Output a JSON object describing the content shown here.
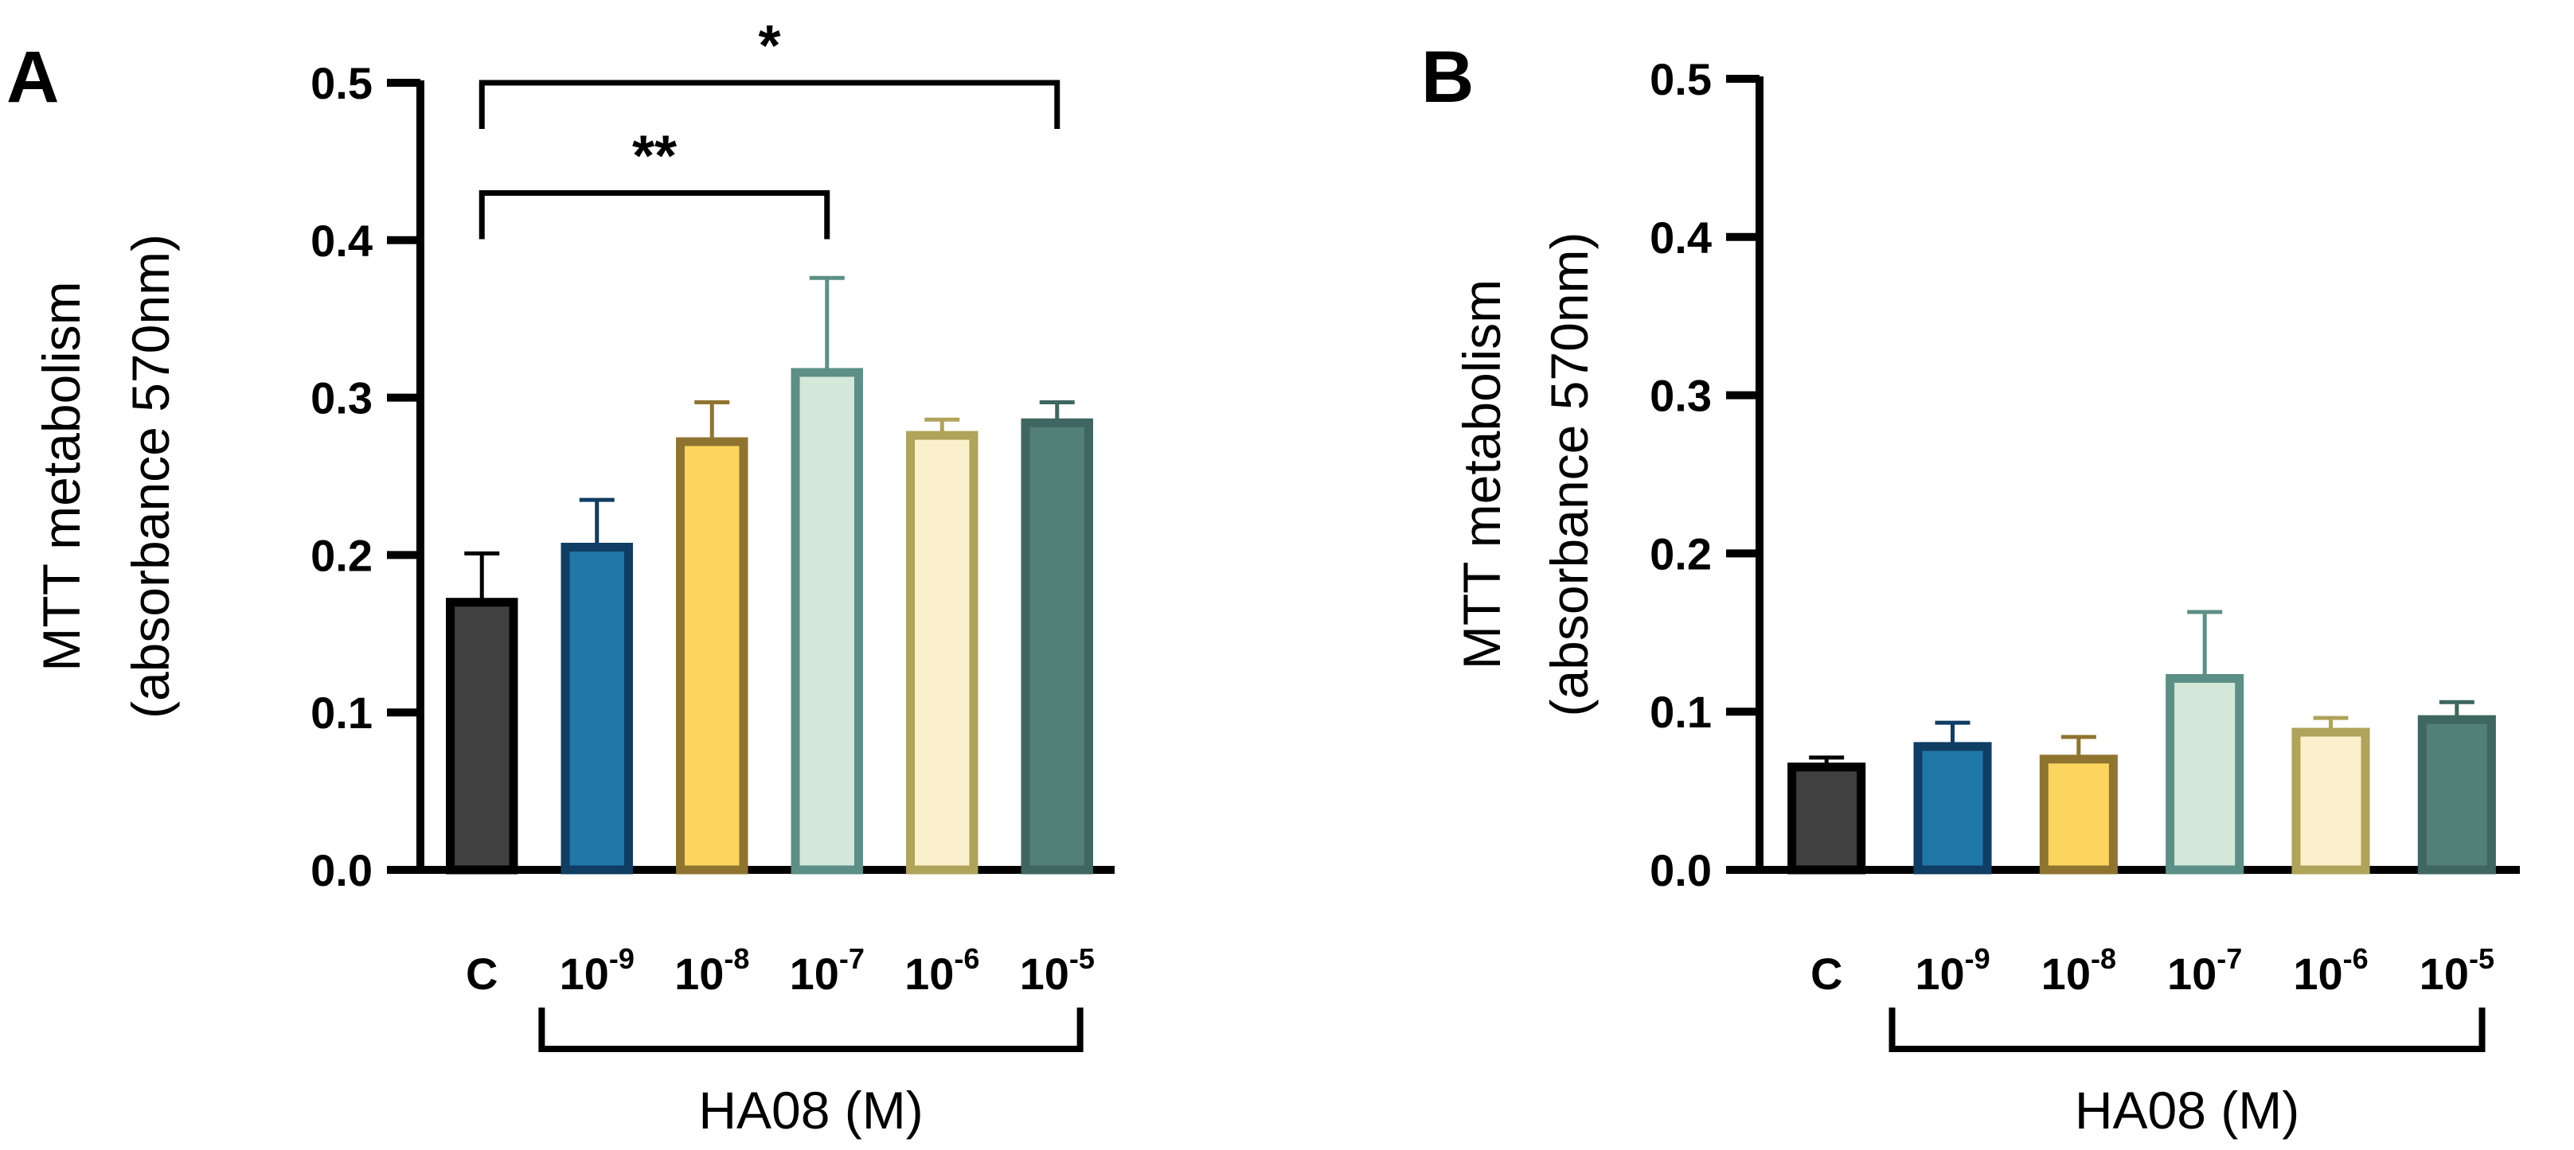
{
  "chart_data": [
    {
      "panel": "A",
      "type": "bar",
      "ylabel_line1": "MTT metabolism",
      "ylabel_line2": "(absorbance 570nm)",
      "ylim": [
        0,
        0.5
      ],
      "yticks": [
        "0.0",
        "0.1",
        "0.2",
        "0.3",
        "0.4",
        "0.5"
      ],
      "categories": [
        {
          "base": "C",
          "exp": ""
        },
        {
          "base": "10",
          "exp": "-9"
        },
        {
          "base": "10",
          "exp": "-8"
        },
        {
          "base": "10",
          "exp": "-7"
        },
        {
          "base": "10",
          "exp": "-6"
        },
        {
          "base": "10",
          "exp": "-5"
        }
      ],
      "values": [
        0.17,
        0.205,
        0.272,
        0.316,
        0.276,
        0.284
      ],
      "errors": [
        0.031,
        0.03,
        0.025,
        0.06,
        0.01,
        0.013
      ],
      "bar_fills": [
        "#404040",
        "#1f77a8",
        "#fcd55f",
        "#d3e8d8",
        "#faf0cc",
        "#528079"
      ],
      "bar_strokes": [
        "#000000",
        "#0f3d63",
        "#8f7430",
        "#5c8f86",
        "#b0a35a",
        "#3f6660"
      ],
      "group_label": "HA08 (M)",
      "group_from": 1,
      "group_to": 5,
      "significance": [
        {
          "from": 0,
          "to": 3,
          "label": "**",
          "level": 0.43
        },
        {
          "from": 0,
          "to": 5,
          "label": "*",
          "level": 0.5
        }
      ]
    },
    {
      "panel": "B",
      "type": "bar",
      "ylabel_line1": "MTT metabolism",
      "ylabel_line2": "(absorbance 570nm)",
      "ylim": [
        0,
        0.5
      ],
      "yticks": [
        "0.0",
        "0.1",
        "0.2",
        "0.3",
        "0.4",
        "0.5"
      ],
      "categories": [
        {
          "base": "C",
          "exp": ""
        },
        {
          "base": "10",
          "exp": "-9"
        },
        {
          "base": "10",
          "exp": "-8"
        },
        {
          "base": "10",
          "exp": "-7"
        },
        {
          "base": "10",
          "exp": "-6"
        },
        {
          "base": "10",
          "exp": "-5"
        }
      ],
      "values": [
        0.065,
        0.078,
        0.07,
        0.121,
        0.087,
        0.095
      ],
      "errors": [
        0.006,
        0.015,
        0.014,
        0.042,
        0.009,
        0.011
      ],
      "bar_fills": [
        "#404040",
        "#1f77a8",
        "#fcd55f",
        "#d3e8d8",
        "#faf0cc",
        "#528079"
      ],
      "bar_strokes": [
        "#000000",
        "#0f3d63",
        "#8f7430",
        "#5c8f86",
        "#b0a35a",
        "#3f6660"
      ],
      "group_label": "HA08 (M)",
      "group_from": 1,
      "group_to": 5,
      "significance": []
    }
  ]
}
